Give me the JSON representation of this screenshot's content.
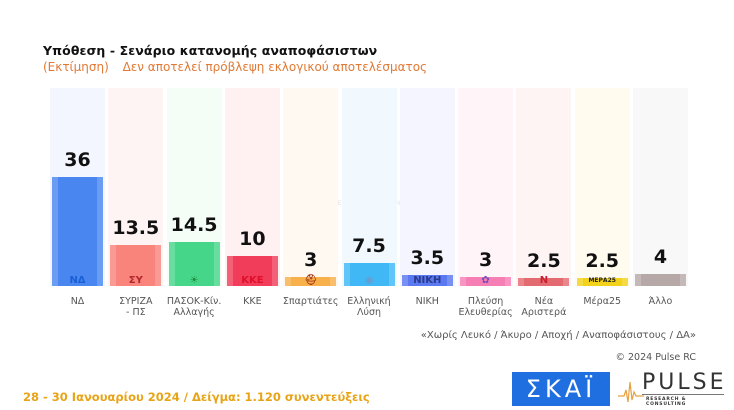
{
  "header": {
    "title": "Υπόθεση - Σενάριο κατανομής αναποφάσιστων",
    "subtitle_prefix": "(Εκτίμηση)",
    "subtitle": "Δεν αποτελεί πρόβλεψη εκλογικού αποτελέσματος"
  },
  "chart_data": {
    "type": "bar",
    "title": "Υπόθεση - Σενάριο κατανομής αναποφάσιστων",
    "subtitle": "(Εκτίμηση) Δεν αποτελεί πρόβλεψη εκλογικού αποτελέσματος",
    "categories": [
      "ΝΔ",
      "ΣΥΡΙΖΑ - ΠΣ",
      "ΠΑΣΟΚ-Κίν. Αλλαγής",
      "ΚΚΕ",
      "Σπαρτιάτες",
      "Ελληνική Λύση",
      "ΝΙΚΗ",
      "Πλεύση Ελευθερίας",
      "Νέα Αριστερά",
      "Μέρα25",
      "Άλλο"
    ],
    "values": [
      36,
      13.5,
      14.5,
      10,
      3,
      7.5,
      3.5,
      3,
      2.5,
      2.5,
      4
    ],
    "colors": [
      "#4a86f0",
      "#f9847c",
      "#46d68a",
      "#f23d5a",
      "#f8b04a",
      "#40b8f5",
      "#5a78f0",
      "#f57fb5",
      "#e46a72",
      "#f2d21a",
      "#b7a8a8"
    ],
    "column_bg": [
      "#f3f6fe",
      "#fff4f4",
      "#f5fdf7",
      "#fff0f2",
      "#fff9f2",
      "#f1f9fe",
      "#f4f5fe",
      "#fff5f9",
      "#fff4f4",
      "#fffbef",
      "#f9f8f8"
    ],
    "xlabel": "",
    "ylabel": "",
    "ylim": [
      0,
      60
    ],
    "grid": false,
    "legend": "none"
  },
  "bars": [
    {
      "label_line1": "ΝΔ",
      "label_line2": "",
      "value": "36",
      "logo": "ΝΔ",
      "logo_color": "#1a5fd6"
    },
    {
      "label_line1": "ΣΥΡΙΖΑ",
      "label_line2": "- ΠΣ",
      "value": "13.5",
      "logo": "ΣΥ",
      "logo_color": "#b3262b"
    },
    {
      "label_line1": "ΠΑΣΟΚ-Κίν.",
      "label_line2": "Αλλαγής",
      "value": "14.5",
      "logo": "☀",
      "logo_color": "#1e8a3a"
    },
    {
      "label_line1": "ΚΚΕ",
      "label_line2": "",
      "value": "10",
      "logo": "ΚΚΕ",
      "logo_color": "#e0102a"
    },
    {
      "label_line1": "Σπαρτιάτες",
      "label_line2": "",
      "value": "3",
      "logo": "⛑",
      "logo_color": "#a33a1a"
    },
    {
      "label_line1": "Ελληνική",
      "label_line2": "Λύση",
      "value": "7.5",
      "logo": "◉",
      "logo_color": "#6a9ad0"
    },
    {
      "label_line1": "ΝΙΚΗ",
      "label_line2": "",
      "value": "3.5",
      "logo": "ΝΙΚΗ",
      "logo_color": "#2a3a8a"
    },
    {
      "label_line1": "Πλεύση",
      "label_line2": "Ελευθερίας",
      "value": "3",
      "logo": "✿",
      "logo_color": "#7a4ab8"
    },
    {
      "label_line1": "Νέα",
      "label_line2": "Αριστερά",
      "value": "2.5",
      "logo": "Ν",
      "logo_color": "#c8202e"
    },
    {
      "label_line1": "Μέρα25",
      "label_line2": "",
      "value": "2.5",
      "logo": "ΜΕΡΑ25",
      "logo_color": "#222222"
    },
    {
      "label_line1": "Άλλο",
      "label_line2": "",
      "value": "4",
      "logo": "",
      "logo_color": "#888888"
    }
  ],
  "watermark": {
    "main": "PULSE",
    "sub": "RESEARCH & CONSULTING"
  },
  "note": "«Χωρίς Λευκό / Άκυρο / Αποχή / Αναποφάσιστους / ΔΑ»",
  "copyright": "© 2024 Pulse RC",
  "footer": "28 - 30  Ιανουαρίου  2024  /  Δείγμα:  1.120 συνεντεύξεις",
  "logos": {
    "skai": "ΣΚΑΪ",
    "pulse": "PULSE",
    "pulse_sub": "RESEARCH & CONSULTING"
  }
}
